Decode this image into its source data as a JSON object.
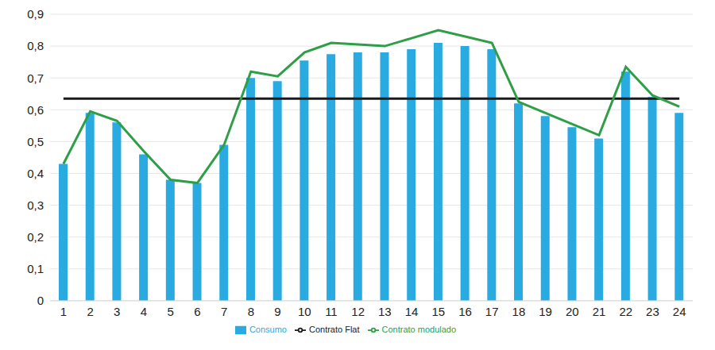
{
  "chart_data": {
    "type": "bar",
    "categories": [
      1,
      2,
      3,
      4,
      5,
      6,
      7,
      8,
      9,
      10,
      11,
      12,
      13,
      14,
      15,
      16,
      17,
      18,
      19,
      20,
      21,
      22,
      23,
      24
    ],
    "series": [
      {
        "name": "Consumo",
        "type": "bar",
        "color": "#29abe2",
        "values": [
          0.43,
          0.59,
          0.56,
          0.46,
          0.38,
          0.37,
          0.49,
          0.7,
          0.69,
          0.755,
          0.775,
          0.78,
          0.78,
          0.79,
          0.81,
          0.8,
          0.79,
          0.62,
          0.58,
          0.545,
          0.51,
          0.72,
          0.64,
          0.59
        ]
      },
      {
        "name": "Contrato Flat",
        "type": "line",
        "color": "#1a1a1a",
        "values": [
          0.635,
          0.635,
          0.635,
          0.635,
          0.635,
          0.635,
          0.635,
          0.635,
          0.635,
          0.635,
          0.635,
          0.635,
          0.635,
          0.635,
          0.635,
          0.635,
          0.635,
          0.635,
          0.635,
          0.635,
          0.635,
          0.635,
          0.635,
          0.635
        ]
      },
      {
        "name": "Contrato modulado",
        "type": "line",
        "color": "#2e9e47",
        "values": [
          0.43,
          0.595,
          0.565,
          0.47,
          0.38,
          0.37,
          0.49,
          0.72,
          0.705,
          0.78,
          0.81,
          0.805,
          0.8,
          0.825,
          0.85,
          0.83,
          0.81,
          0.625,
          0.59,
          0.555,
          0.52,
          0.735,
          0.645,
          0.61
        ]
      }
    ],
    "ylim": [
      0,
      0.9
    ],
    "yticks": [
      0,
      {
        "value": 0.1,
        "label": "0,1"
      },
      {
        "value": 0.2,
        "label": "0,2"
      },
      {
        "value": 0.3,
        "label": "0,3"
      },
      {
        "value": 0.4,
        "label": "0,4"
      },
      {
        "value": 0.5,
        "label": "0,5"
      },
      {
        "value": 0.6,
        "label": "0,6"
      },
      {
        "value": 0.7,
        "label": "0,7"
      },
      {
        "value": 0.8,
        "label": "0,8"
      },
      {
        "value": 0.9,
        "label": "0,9"
      }
    ],
    "grid": true,
    "legend": "bottom"
  }
}
